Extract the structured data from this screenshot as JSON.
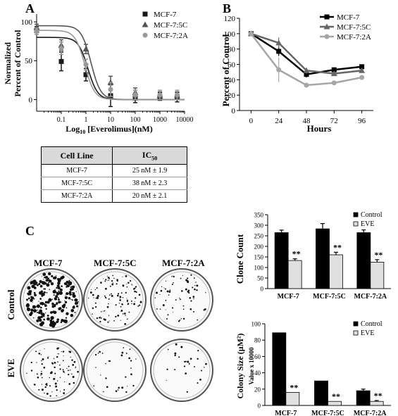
{
  "panel_labels": {
    "a": "A",
    "b": "B",
    "c": "C"
  },
  "chart_data": [
    {
      "type": "scatter",
      "panel": "A",
      "xlabel": "Log10 [Everolimus](nM)",
      "xlabel_parts": {
        "pre": "Log",
        "sub": "10",
        "post": " [Everolimus](nM)"
      },
      "ylabel": [
        "Normalized",
        "Percent of Control"
      ],
      "x_scale": "log",
      "xticks": [
        0.1,
        1,
        10,
        100,
        1000,
        10000
      ],
      "xtick_labels": [
        "0.1",
        "1",
        "10",
        "100",
        "1000",
        "10000"
      ],
      "yticks": [
        0,
        50,
        100
      ],
      "ylim": [
        -15,
        110
      ],
      "legend_placement": "top-right",
      "series": [
        {
          "name": "MCF-7",
          "marker": "square",
          "color": "#1a1a1a",
          "x": [
            0.01,
            0.1,
            1,
            10,
            100,
            1000,
            5000
          ],
          "y": [
            89,
            49,
            32,
            5,
            2,
            4,
            3
          ],
          "err": [
            5,
            12,
            8,
            14,
            6,
            5,
            6
          ],
          "fit_top": 80,
          "fit_bottom": 0,
          "fit_ic50": 1.2
        },
        {
          "name": "MCF-7:5C",
          "marker": "triangle",
          "color": "#555555",
          "x": [
            0.01,
            0.1,
            1,
            10,
            100,
            1000,
            5000
          ],
          "y": [
            93,
            70,
            65,
            22,
            9,
            5,
            5
          ],
          "err": [
            4,
            7,
            6,
            8,
            6,
            5,
            5
          ],
          "fit_top": 95,
          "fit_bottom": 0,
          "fit_ic50": 1.6
        },
        {
          "name": "MCF-7:2A",
          "marker": "circle",
          "color": "#999999",
          "x": [
            0.01,
            0.1,
            1,
            10,
            100,
            1000,
            5000
          ],
          "y": [
            88,
            66,
            45,
            13,
            6,
            6,
            6
          ],
          "err": [
            4,
            8,
            7,
            9,
            6,
            6,
            6
          ],
          "fit_top": 89,
          "fit_bottom": 0,
          "fit_ic50": 0.9
        }
      ]
    },
    {
      "type": "line",
      "panel": "B",
      "xlabel": "Hours",
      "ylabel": "Percent of Control",
      "x": [
        0,
        24,
        48,
        72,
        96
      ],
      "xlim": [
        -10,
        106
      ],
      "ylim": [
        0,
        120
      ],
      "yticks": [
        0,
        20,
        40,
        60,
        80,
        100,
        120
      ],
      "legend_placement": "top-right",
      "series": [
        {
          "name": "MCF-7",
          "color": "#000000",
          "marker": "square",
          "values": [
            100,
            77,
            47,
            53,
            57
          ],
          "err": [
            0,
            6,
            4,
            3,
            3
          ]
        },
        {
          "name": "MCF-7:5C",
          "color": "#666666",
          "marker": "triangle",
          "values": [
            100,
            88,
            52,
            48,
            52
          ],
          "err": [
            0,
            7,
            4,
            3,
            3
          ]
        },
        {
          "name": "MCF-7:2A",
          "color": "#a6a6a6",
          "marker": "circle",
          "values": [
            100,
            53,
            33,
            36,
            43
          ],
          "err": [
            0,
            16,
            2,
            2,
            2
          ]
        }
      ]
    },
    {
      "type": "bar",
      "panel": "C-top",
      "ylabel": "Clone Count",
      "categories": [
        "MCF-7",
        "MCF-7:5C",
        "MCF-7:2A"
      ],
      "ylim": [
        0,
        350
      ],
      "yticks": [
        0,
        50,
        100,
        150,
        200,
        250,
        300,
        350
      ],
      "legend_placement": "top-right",
      "significance": "**",
      "series": [
        {
          "name": "Control",
          "color": "#000000",
          "values": [
            265,
            283,
            265
          ],
          "err": [
            12,
            25,
            13
          ]
        },
        {
          "name": "EVE",
          "color": "#e0e0e0",
          "values": [
            133,
            160,
            125
          ],
          "err": [
            8,
            12,
            12
          ]
        }
      ]
    },
    {
      "type": "bar",
      "panel": "C-bottom",
      "ylabel": "Colony Size (μM²)",
      "ylabel2": "Value x 10000",
      "categories": [
        "MCF-7",
        "MCF-7:5C",
        "MCF-7:2A"
      ],
      "ylim": [
        0,
        100
      ],
      "yticks": [
        0,
        20,
        40,
        60,
        80,
        100
      ],
      "legend_placement": "top-right",
      "significance": "**",
      "series": [
        {
          "name": "Control",
          "color": "#000000",
          "values": [
            89,
            30,
            18
          ],
          "err": [
            0,
            0,
            2
          ]
        },
        {
          "name": "EVE",
          "color": "#e0e0e0",
          "values": [
            16,
            5,
            5
          ],
          "err": [
            0,
            0,
            1
          ]
        }
      ]
    }
  ],
  "ic50_table": {
    "headers": [
      "Cell Line",
      "IC",
      "50"
    ],
    "rows": [
      {
        "cell_line": "MCF-7",
        "ic50": "25 nM ± 1.9"
      },
      {
        "cell_line": "MCF-7:5C",
        "ic50": "38 nM ± 2.3"
      },
      {
        "cell_line": "MCF-7:2A",
        "ic50": "20 nM ± 2.1"
      }
    ]
  },
  "plates": {
    "columns": [
      "MCF-7",
      "MCF-7:5C",
      "MCF-7:2A"
    ],
    "rows": [
      "Control",
      "EVE"
    ],
    "densities": [
      [
        0.95,
        0.45,
        0.25
      ],
      [
        0.35,
        0.12,
        0.1
      ]
    ]
  }
}
